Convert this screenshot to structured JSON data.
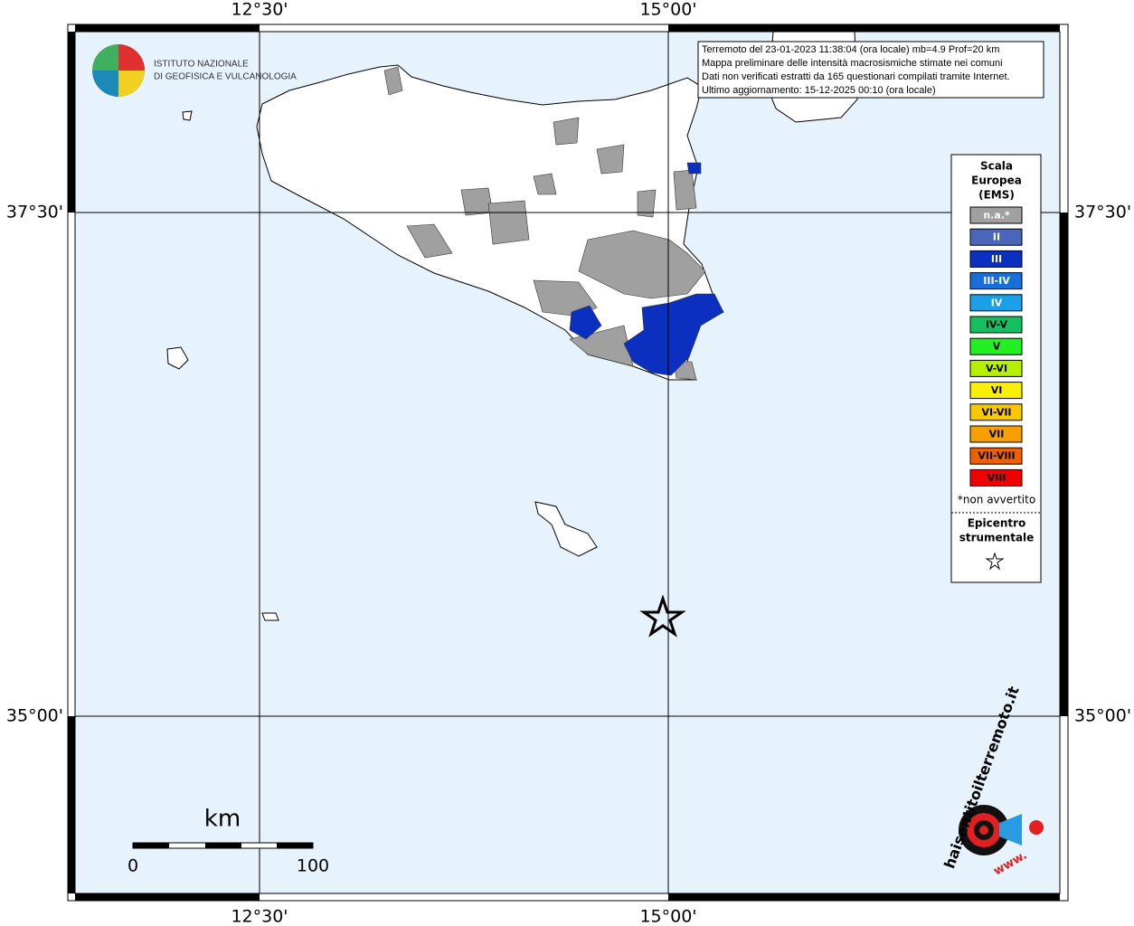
{
  "header": {
    "lines": [
      "Terremoto del 23-01-2023 11:38:04 (ora locale) mb=4.9 Prof=20 km",
      "Mappa preliminare delle intensità macrosismiche stimate nei comuni",
      "Dati non verificati estratti da 165 questionari compilati tramite Internet.",
      "Ultimo aggiornamento: 15-12-2025 00:10 (ora locale)"
    ]
  },
  "logo": {
    "line1": "ISTITUTO NAZIONALE",
    "line2": "DI GEOFISICA E VULCANOLOGIA"
  },
  "graticule": {
    "longitudes": [
      "12°30'",
      "15°00'"
    ],
    "latitudes": [
      "37°30'",
      "35°00'"
    ]
  },
  "legend": {
    "title": [
      "Scala",
      "Europea",
      "(EMS)"
    ],
    "classes": [
      {
        "label": "n.a.*",
        "color": "#a0a0a0"
      },
      {
        "label": "II",
        "color": "#4a66b8"
      },
      {
        "label": "III",
        "color": "#0b30c0"
      },
      {
        "label": "III-IV",
        "color": "#1a6ed8"
      },
      {
        "label": "IV",
        "color": "#1aa0e8"
      },
      {
        "label": "IV-V",
        "color": "#12c060"
      },
      {
        "label": "V",
        "color": "#22f022"
      },
      {
        "label": "V-VI",
        "color": "#b4f000"
      },
      {
        "label": "VI",
        "color": "#f8f000"
      },
      {
        "label": "VI-VII",
        "color": "#f8c800"
      },
      {
        "label": "VII",
        "color": "#f8a000"
      },
      {
        "label": "VII-VIII",
        "color": "#f06000"
      },
      {
        "label": "VIII",
        "color": "#f00000"
      }
    ],
    "note": "*non avvertito",
    "epicenter": [
      "Epicentro",
      "strumentale"
    ]
  },
  "scale_bar": {
    "unit": "km",
    "start": "0",
    "end": "100"
  },
  "badge": {
    "site": "haisentitoilterremoto.it",
    "prefix": "www."
  }
}
